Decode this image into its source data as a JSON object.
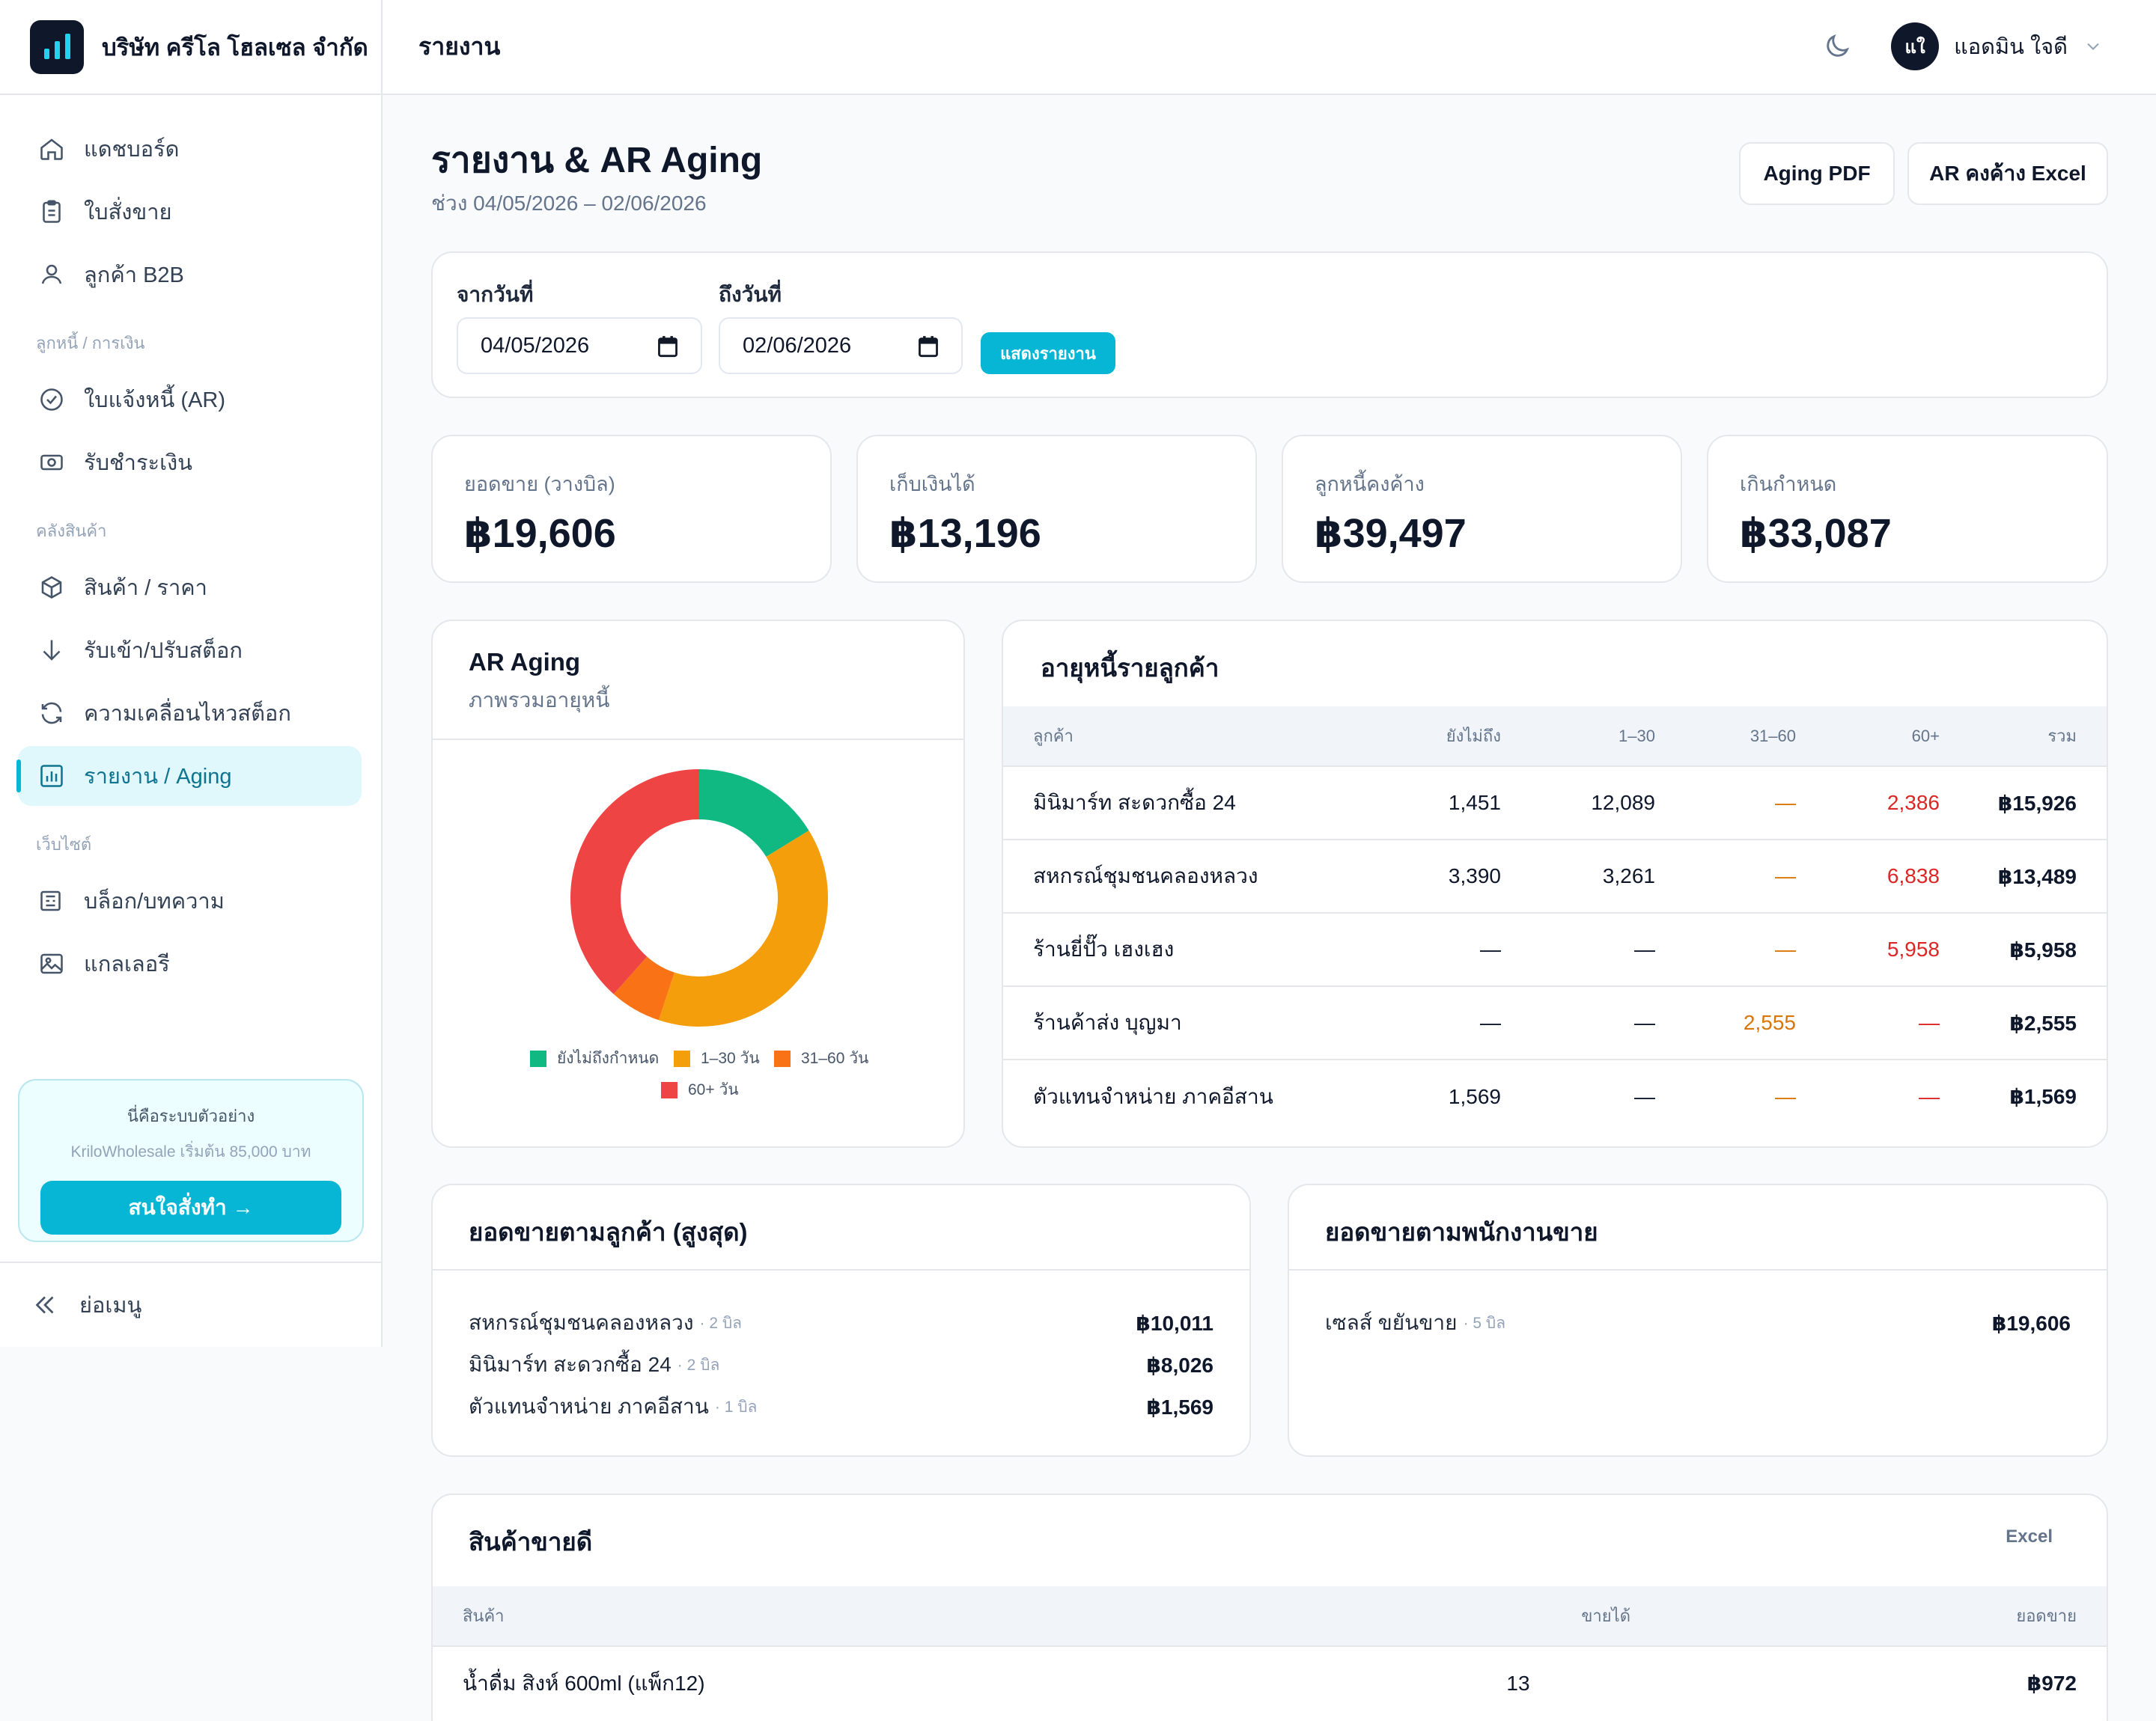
{
  "brand": {
    "name": "บริษัท ครีโล โฮลเซล จำกัด"
  },
  "sidebar": {
    "items": [
      {
        "label": "แดชบอร์ด",
        "icon": "home-icon"
      },
      {
        "label": "ใบสั่งขาย",
        "icon": "clipboard-icon"
      },
      {
        "label": "ลูกค้า B2B",
        "icon": "user-icon"
      }
    ],
    "group_finance": "ลูกหนี้ / การเงิน",
    "finance_items": [
      {
        "label": "ใบแจ้งหนี้ (AR)",
        "icon": "check-circle-icon"
      },
      {
        "label": "รับชำระเงิน",
        "icon": "cash-icon"
      }
    ],
    "group_stock": "คลังสินค้า",
    "stock_items": [
      {
        "label": "สินค้า / ราคา",
        "icon": "box-icon"
      },
      {
        "label": "รับเข้า/ปรับสต็อก",
        "icon": "arrow-down-icon"
      },
      {
        "label": "ความเคลื่อนไหวสต็อก",
        "icon": "refresh-icon"
      },
      {
        "label": "รายงาน / Aging",
        "icon": "bar-chart-icon",
        "active": true
      }
    ],
    "group_web": "เว็บไซต์",
    "web_items": [
      {
        "label": "บล็อก/บทความ",
        "icon": "newspaper-icon"
      },
      {
        "label": "แกลเลอรี",
        "icon": "image-icon"
      }
    ],
    "promo": {
      "title": "นี่คือระบบตัวอย่าง",
      "subtitle": "KriloWholesale เริ่มต้น 85,000 บาท",
      "button": "สนใจสั่งทำ →"
    },
    "collapse_label": "ย่อเมนู"
  },
  "header": {
    "title": "รายงาน",
    "user_initials": "แใ",
    "user_name": "แอดมิน ใจดี"
  },
  "page": {
    "title": "รายงาน & AR Aging",
    "subtitle": "ช่วง 04/05/2026 – 02/06/2026",
    "btn_aging_pdf": "Aging PDF",
    "btn_ar_excel": "AR คงค้าง Excel"
  },
  "filter": {
    "from_label": "จากวันที่",
    "from_value": "04/05/2026",
    "to_label": "ถึงวันที่",
    "to_value": "02/06/2026",
    "submit": "แสดงรายงาน"
  },
  "stats": [
    {
      "label": "ยอดขาย (วางบิล)",
      "value": "฿19,606"
    },
    {
      "label": "เก็บเงินได้",
      "value": "฿13,196"
    },
    {
      "label": "ลูกหนี้คงค้าง",
      "value": "฿39,497"
    },
    {
      "label": "เกินกำหนด",
      "value": "฿33,087"
    }
  ],
  "aging_card": {
    "title": "AR Aging",
    "subtitle": "ภาพรวมอายุหนี้"
  },
  "chart_data": {
    "type": "pie",
    "title": "AR Aging",
    "categories": [
      "ยังไม่ถึงกำหนด",
      "1–30 วัน",
      "31–60 วัน",
      "60+ วัน"
    ],
    "values": [
      6410,
      15350,
      2555,
      15182
    ],
    "colors": [
      "#10b981",
      "#f59e0b",
      "#f97316",
      "#ef4444"
    ],
    "donut": true,
    "legend": "bottom"
  },
  "aging_table": {
    "title": "อายุหนี้รายลูกค้า",
    "headers": [
      "ลูกค้า",
      "ยังไม่ถึง",
      "1–30",
      "31–60",
      "60+",
      "รวม"
    ],
    "rows": [
      [
        "มินิมาร์ท สะดวกซื้อ 24",
        "1,451",
        "12,089",
        "—",
        "2,386",
        "฿15,926"
      ],
      [
        "สหกรณ์ชุมชนคลองหลวง",
        "3,390",
        "3,261",
        "—",
        "6,838",
        "฿13,489"
      ],
      [
        "ร้านยี่ปั๊ว เฮงเฮง",
        "—",
        "—",
        "—",
        "5,958",
        "฿5,958"
      ],
      [
        "ร้านค้าส่ง บุญมา",
        "—",
        "—",
        "2,555",
        "—",
        "฿2,555"
      ],
      [
        "ตัวแทนจำหน่าย ภาคอีสาน",
        "1,569",
        "—",
        "—",
        "—",
        "฿1,569"
      ]
    ]
  },
  "sales_by_customer": {
    "title": "ยอดขายตามลูกค้า (สูงสุด)",
    "rows": [
      {
        "name": "สหกรณ์ชุมชนคลองหลวง",
        "meta": "· 2 บิล",
        "amount": "฿10,011"
      },
      {
        "name": "มินิมาร์ท สะดวกซื้อ 24",
        "meta": "· 2 บิล",
        "amount": "฿8,026"
      },
      {
        "name": "ตัวแทนจำหน่าย ภาคอีสาน",
        "meta": "· 1 บิล",
        "amount": "฿1,569"
      }
    ]
  },
  "sales_by_rep": {
    "title": "ยอดขายตามพนักงานขาย",
    "rows": [
      {
        "name": "เซลส์ ขยันขาย",
        "meta": "· 5 บิล",
        "amount": "฿19,606"
      }
    ]
  },
  "top_products": {
    "title": "สินค้าขายดี",
    "export": "Excel",
    "headers": [
      "สินค้า",
      "ขายได้",
      "ยอดขาย"
    ],
    "rows": [
      [
        "น้ำดื่ม สิงห์ 600ml (แพ็ก12)",
        "13",
        "฿972"
      ]
    ]
  }
}
